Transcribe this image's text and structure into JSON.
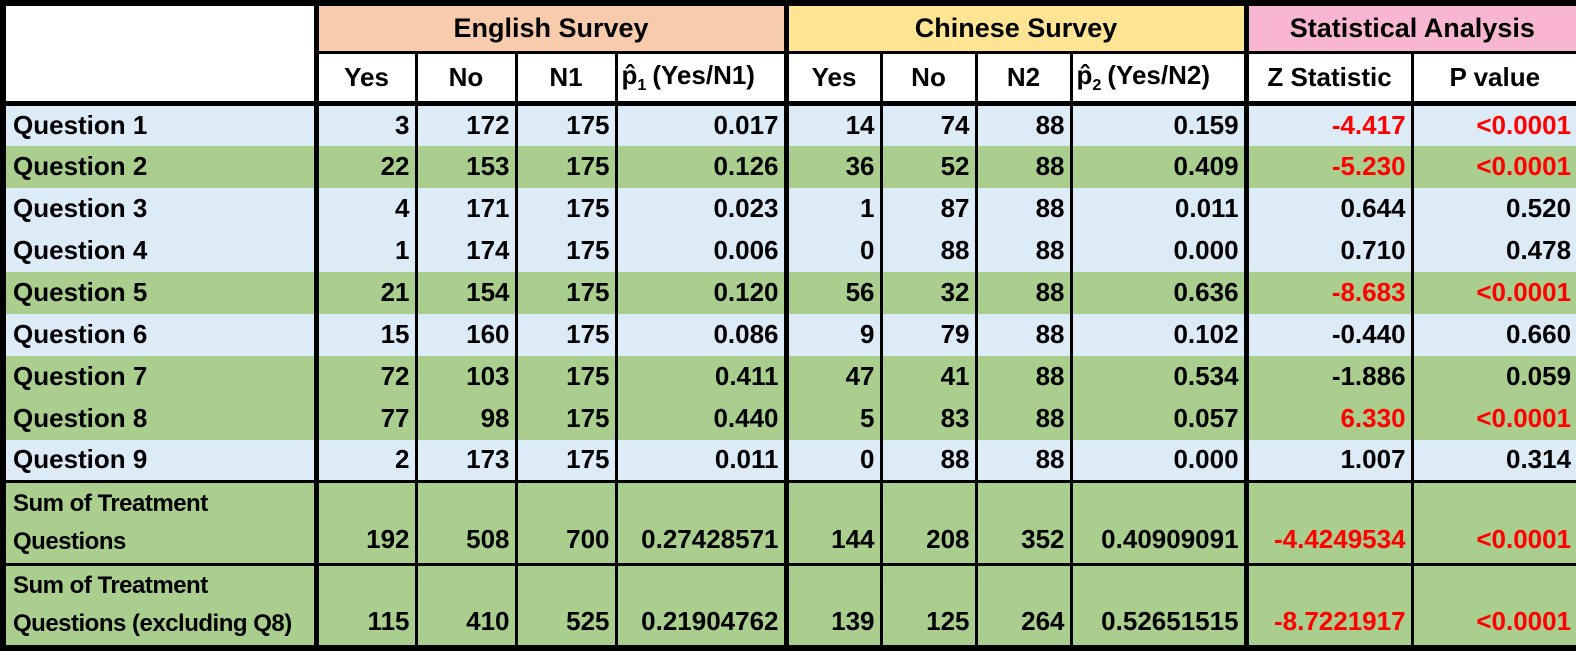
{
  "colors": {
    "section_english": "#F8CBAD",
    "section_chinese": "#FFE593",
    "section_stats": "#F9B6D3",
    "row_blue": "#DDEBF7",
    "row_green": "#A9CE8D",
    "significant_red": "#FF0000",
    "border_black": "#000000",
    "header_white": "#FFFFFF"
  },
  "chart_data": {
    "type": "table",
    "sections": [
      {
        "label": "English Survey",
        "color": "#F8CBAD",
        "span": 4
      },
      {
        "label": "Chinese Survey",
        "color": "#FFE593",
        "span": 4
      },
      {
        "label": "Statistical Analysis",
        "color": "#F9B6D3",
        "span": 2
      }
    ],
    "columns": [
      {
        "label": "Yes"
      },
      {
        "label": "No"
      },
      {
        "label": "N1"
      },
      {
        "base": "p̂",
        "sub": "1",
        "rest": "(Yes/N1)"
      },
      {
        "label": "Yes"
      },
      {
        "label": "No"
      },
      {
        "label": "N2"
      },
      {
        "base": "p̂",
        "sub": "2",
        "rest": "(Yes/N2)"
      },
      {
        "label": "Z Statistic"
      },
      {
        "label": "P value"
      }
    ],
    "rows": [
      {
        "group": "question",
        "tone": "blue",
        "label_lines": [
          "Question 1"
        ],
        "values": [
          "3",
          "172",
          "175",
          "0.017",
          "14",
          "74",
          "88",
          "0.159"
        ],
        "z_statistic": "-4.417",
        "p_value": "<0.0001",
        "significant": true
      },
      {
        "group": "question",
        "tone": "green",
        "label_lines": [
          "Question 2"
        ],
        "values": [
          "22",
          "153",
          "175",
          "0.126",
          "36",
          "52",
          "88",
          "0.409"
        ],
        "z_statistic": "-5.230",
        "p_value": "<0.0001",
        "significant": true
      },
      {
        "group": "question",
        "tone": "blue",
        "label_lines": [
          "Question 3"
        ],
        "values": [
          "4",
          "171",
          "175",
          "0.023",
          "1",
          "87",
          "88",
          "0.011"
        ],
        "z_statistic": "0.644",
        "p_value": "0.520",
        "significant": false
      },
      {
        "group": "question",
        "tone": "blue",
        "label_lines": [
          "Question 4"
        ],
        "values": [
          "1",
          "174",
          "175",
          "0.006",
          "0",
          "88",
          "88",
          "0.000"
        ],
        "z_statistic": "0.710",
        "p_value": "0.478",
        "significant": false
      },
      {
        "group": "question",
        "tone": "green",
        "label_lines": [
          "Question 5"
        ],
        "values": [
          "21",
          "154",
          "175",
          "0.120",
          "56",
          "32",
          "88",
          "0.636"
        ],
        "z_statistic": "-8.683",
        "p_value": "<0.0001",
        "significant": true
      },
      {
        "group": "question",
        "tone": "blue",
        "label_lines": [
          "Question 6"
        ],
        "values": [
          "15",
          "160",
          "175",
          "0.086",
          "9",
          "79",
          "88",
          "0.102"
        ],
        "z_statistic": "-0.440",
        "p_value": "0.660",
        "significant": false
      },
      {
        "group": "question",
        "tone": "green",
        "label_lines": [
          "Question 7"
        ],
        "values": [
          "72",
          "103",
          "175",
          "0.411",
          "47",
          "41",
          "88",
          "0.534"
        ],
        "z_statistic": "-1.886",
        "p_value": "0.059",
        "significant": false
      },
      {
        "group": "question",
        "tone": "green",
        "label_lines": [
          "Question 8"
        ],
        "values": [
          "77",
          "98",
          "175",
          "0.440",
          "5",
          "83",
          "88",
          "0.057"
        ],
        "z_statistic": "6.330",
        "p_value": "<0.0001",
        "significant": true
      },
      {
        "group": "question",
        "tone": "blue",
        "label_lines": [
          "Question 9"
        ],
        "values": [
          "2",
          "173",
          "175",
          "0.011",
          "0",
          "88",
          "88",
          "0.000"
        ],
        "z_statistic": "1.007",
        "p_value": "0.314",
        "significant": false
      },
      {
        "group": "sum",
        "tone": "green",
        "label_lines": [
          "Sum of Treatment",
          "Questions"
        ],
        "values": [
          "192",
          "508",
          "700",
          "0.27428571",
          "144",
          "208",
          "352",
          "0.40909091"
        ],
        "z_statistic": "-4.4249534",
        "p_value": "<0.0001",
        "significant": true
      },
      {
        "group": "sum",
        "tone": "green",
        "label_lines": [
          "Sum of Treatment",
          "Questions (excluding Q8)"
        ],
        "values": [
          "115",
          "410",
          "525",
          "0.21904762",
          "139",
          "125",
          "264",
          "0.52651515"
        ],
        "z_statistic": "-8.7221917",
        "p_value": "<0.0001",
        "significant": true
      }
    ]
  }
}
